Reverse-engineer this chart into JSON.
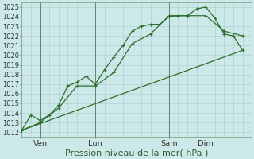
{
  "title": "",
  "xlabel": "Pression niveau de la mer( hPa )",
  "ylabel": "",
  "background_color": "#cce8e8",
  "grid_color": "#aacccc",
  "line_color": "#2d6e2d",
  "ylim": [
    1011.5,
    1025.5
  ],
  "xlim": [
    0,
    100
  ],
  "xtick_positions": [
    8,
    32,
    64,
    80
  ],
  "xtick_labels": [
    "Ven",
    "Lun",
    "Sam",
    "Dim"
  ],
  "ytick_positions": [
    1012,
    1013,
    1014,
    1015,
    1016,
    1017,
    1018,
    1019,
    1020,
    1021,
    1022,
    1023,
    1024,
    1025
  ],
  "line1_x": [
    0,
    4,
    8,
    12,
    16,
    20,
    24,
    28,
    32,
    36,
    40,
    44,
    48,
    52,
    56,
    60,
    64,
    68,
    72,
    76,
    80,
    84,
    88,
    92,
    96
  ],
  "line1_y": [
    1012.2,
    1013.8,
    1013.2,
    1013.8,
    1014.8,
    1016.8,
    1017.2,
    1017.8,
    1017.0,
    1018.5,
    1019.8,
    1021.0,
    1022.5,
    1023.0,
    1023.2,
    1023.2,
    1024.0,
    1024.1,
    1024.1,
    1024.8,
    1025.0,
    1023.8,
    1022.2,
    1022.0,
    1020.5
  ],
  "line2_x": [
    0,
    8,
    16,
    24,
    32,
    40,
    48,
    56,
    64,
    72,
    80,
    88,
    96
  ],
  "line2_y": [
    1012.2,
    1013.0,
    1014.5,
    1016.8,
    1016.8,
    1018.2,
    1021.2,
    1022.2,
    1024.1,
    1024.1,
    1024.1,
    1022.5,
    1022.0
  ],
  "line3_x": [
    0,
    96
  ],
  "line3_y": [
    1012.2,
    1020.5
  ],
  "marker": "+",
  "marker_size": 3.5,
  "line_width": 0.9,
  "fontsize_xlabel": 8,
  "fontsize_ytick": 6,
  "fontsize_xtick": 7,
  "figwidth": 3.2,
  "figheight": 2.0,
  "dpi": 100
}
